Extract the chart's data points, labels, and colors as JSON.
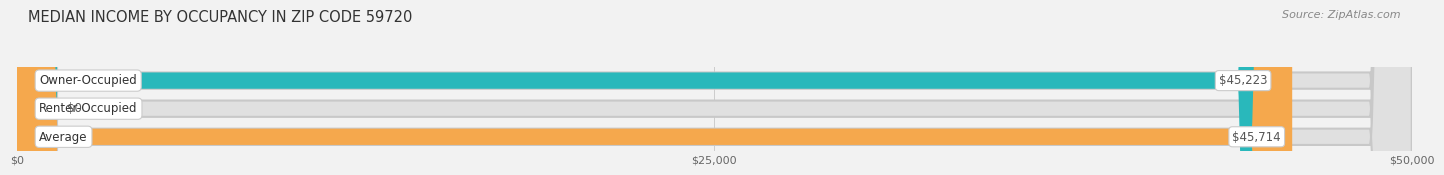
{
  "title": "MEDIAN INCOME BY OCCUPANCY IN ZIP CODE 59720",
  "source": "Source: ZipAtlas.com",
  "categories": [
    "Owner-Occupied",
    "Renter-Occupied",
    "Average"
  ],
  "values": [
    45223,
    0,
    45714
  ],
  "bar_colors": [
    "#29b8bb",
    "#c4a8e0",
    "#f5a84d"
  ],
  "value_labels": [
    "$45,223",
    "$0",
    "$45,714"
  ],
  "xlim": [
    0,
    50000
  ],
  "xticks": [
    0,
    25000,
    50000
  ],
  "xtick_labels": [
    "$0",
    "$25,000",
    "$50,000"
  ],
  "bg_color": "#f2f2f2",
  "bar_bg_color": "#e0e0e0",
  "bar_bg_edge_color": "#d0d0d0",
  "title_fontsize": 10.5,
  "source_fontsize": 8,
  "label_fontsize": 8.5,
  "value_fontsize": 8.5,
  "bar_height": 0.58
}
